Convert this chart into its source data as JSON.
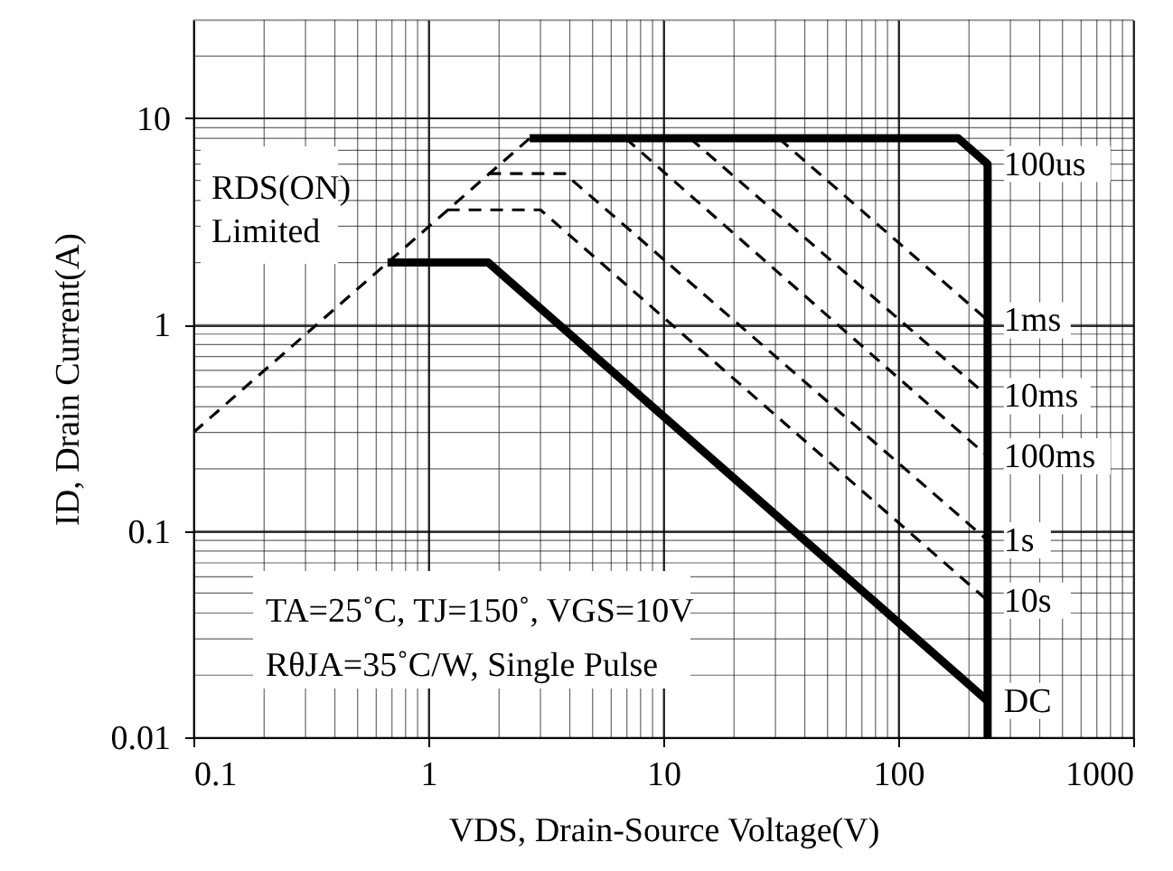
{
  "chart_data": {
    "type": "line",
    "xlabel": "VDS, Drain-Source Voltage(V)",
    "ylabel": "ID, Drain Current(A)",
    "log": "xy",
    "grid": true,
    "legend": false,
    "xlim": [
      0.1,
      1000
    ],
    "xticks": [
      0.1,
      1,
      10,
      100,
      1000
    ],
    "ylim": [
      0.01,
      30
    ],
    "yticks": [
      0.01,
      0.1,
      1,
      10
    ],
    "annotations": [
      "RDS(ON)\nLimited",
      "TA=25˚C, TJ=150˚, VGS=10V",
      "RθJA=35˚C/W, Single Pulse"
    ],
    "series": [
      {
        "color": "#000000",
        "line_style": "dashed",
        "x": [
          0.1,
          2.7
        ],
        "values": [
          0.3,
          8
        ]
      },
      {
        "name": "100us",
        "color": "#000000",
        "line_style": "solid",
        "x": [
          2.7,
          180,
          240,
          240
        ],
        "values": [
          8,
          8,
          6,
          0.01
        ]
      },
      {
        "name": "1ms",
        "color": "#000000",
        "line_style": "dashed",
        "x": [
          31,
          240
        ],
        "values": [
          8,
          1.05
        ]
      },
      {
        "name": "10ms",
        "color": "#000000",
        "line_style": "dashed",
        "x": [
          13,
          240
        ],
        "values": [
          8,
          0.45
        ]
      },
      {
        "name": "100ms",
        "color": "#000000",
        "line_style": "dashed",
        "x": [
          6.9,
          240
        ],
        "values": [
          8,
          0.23
        ]
      },
      {
        "name": "1s",
        "color": "#000000",
        "line_style": "dashed",
        "x": [
          1.8,
          3.8,
          240
        ],
        "values": [
          5.4,
          5.4,
          0.09
        ]
      },
      {
        "name": "10s",
        "color": "#000000",
        "line_style": "dashed",
        "x": [
          1.2,
          3,
          240
        ],
        "values": [
          3.6,
          3.6,
          0.046
        ]
      },
      {
        "name": "DC",
        "color": "#000000",
        "line_style": "solid",
        "x": [
          0.67,
          1.8,
          240
        ],
        "values": [
          2,
          2,
          0.015
        ]
      }
    ]
  }
}
